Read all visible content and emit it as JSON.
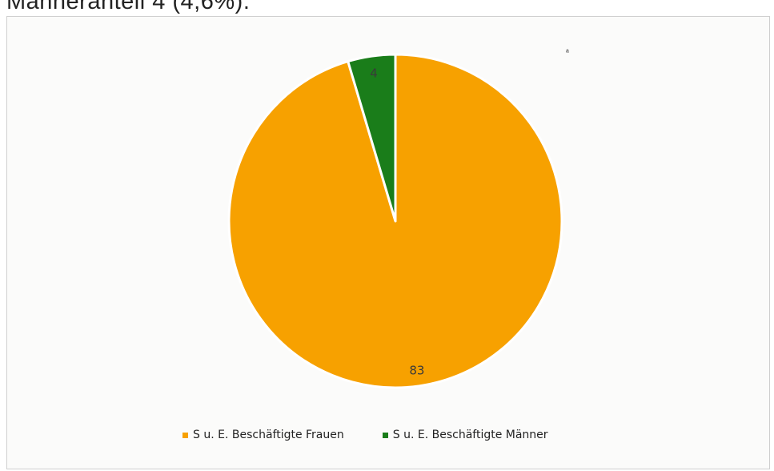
{
  "header": {
    "partial_text": "Männeranteil 4 (4,6%)."
  },
  "chart_data": {
    "type": "pie",
    "title": "",
    "start_angle_deg": 0,
    "direction": "clockwise",
    "slices": [
      {
        "label": "S u. E. Beschäftigte Frauen",
        "value": 83,
        "color": "#f7a100"
      },
      {
        "label": "S u. E. Beschäftigte Männer",
        "value": 4,
        "color": "#1a7d1a"
      }
    ],
    "data_labels_shown": true,
    "legend_placement": "bottom"
  }
}
